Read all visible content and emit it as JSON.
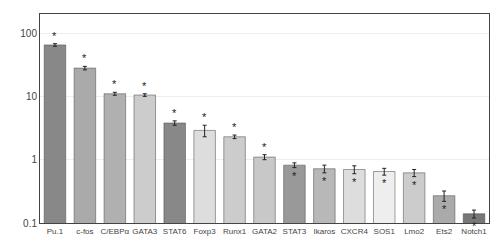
{
  "chart_data": {
    "type": "bar",
    "categories": [
      "Pu.1",
      "c-fos",
      "C/EBPα",
      "GATA3",
      "STAT6",
      "Foxp3",
      "Runx1",
      "GATA2",
      "STAT3",
      "Ikaros",
      "CXCR4",
      "SOS1",
      "Lmo2",
      "Ets2",
      "Notch1"
    ],
    "values": [
      65,
      28,
      11,
      10.5,
      3.8,
      2.9,
      2.3,
      1.1,
      0.82,
      0.72,
      0.7,
      0.65,
      0.62,
      0.27,
      0.14
    ],
    "errors_plus": [
      3.0,
      1.8,
      0.6,
      0.5,
      0.3,
      0.6,
      0.15,
      0.1,
      0.07,
      0.1,
      0.1,
      0.08,
      0.08,
      0.05,
      0.02
    ],
    "errors_minus": [
      3.0,
      1.8,
      0.6,
      0.5,
      0.3,
      0.6,
      0.15,
      0.1,
      0.07,
      0.1,
      0.1,
      0.08,
      0.08,
      0.05,
      0.02
    ],
    "colors": [
      "#888888",
      "#aaaaaa",
      "#b0b0b0",
      "#cccccc",
      "#888888",
      "#dddddd",
      "#cccccc",
      "#c8c8c8",
      "#999999",
      "#b8b8b8",
      "#dddddd",
      "#eeeeee",
      "#cccccc",
      "#aaaaaa",
      "#777777"
    ],
    "log": "y",
    "ylim": [
      0.1,
      200
    ],
    "yticks": [
      0.1,
      1,
      10,
      100
    ],
    "grid": true,
    "annotations": [
      {
        "x": "Pu.1",
        "text": "*"
      },
      {
        "x": "c-fos",
        "text": "*"
      },
      {
        "x": "C/EBPα",
        "text": "*"
      },
      {
        "x": "GATA3",
        "text": "*"
      },
      {
        "x": "STAT6",
        "text": "*"
      },
      {
        "x": "Foxp3",
        "text": "*"
      },
      {
        "x": "Runx1",
        "text": "*"
      },
      {
        "x": "GATA2",
        "text": "*"
      },
      {
        "x": "STAT3",
        "text": "*"
      },
      {
        "x": "Ikaros",
        "text": "*"
      },
      {
        "x": "CXCR4",
        "text": "*"
      },
      {
        "x": "SOS1",
        "text": "*"
      },
      {
        "x": "Lmo2",
        "text": "*"
      },
      {
        "x": "Ets2",
        "text": "*"
      },
      {
        "x": "Notch1",
        "text": "*"
      }
    ]
  }
}
